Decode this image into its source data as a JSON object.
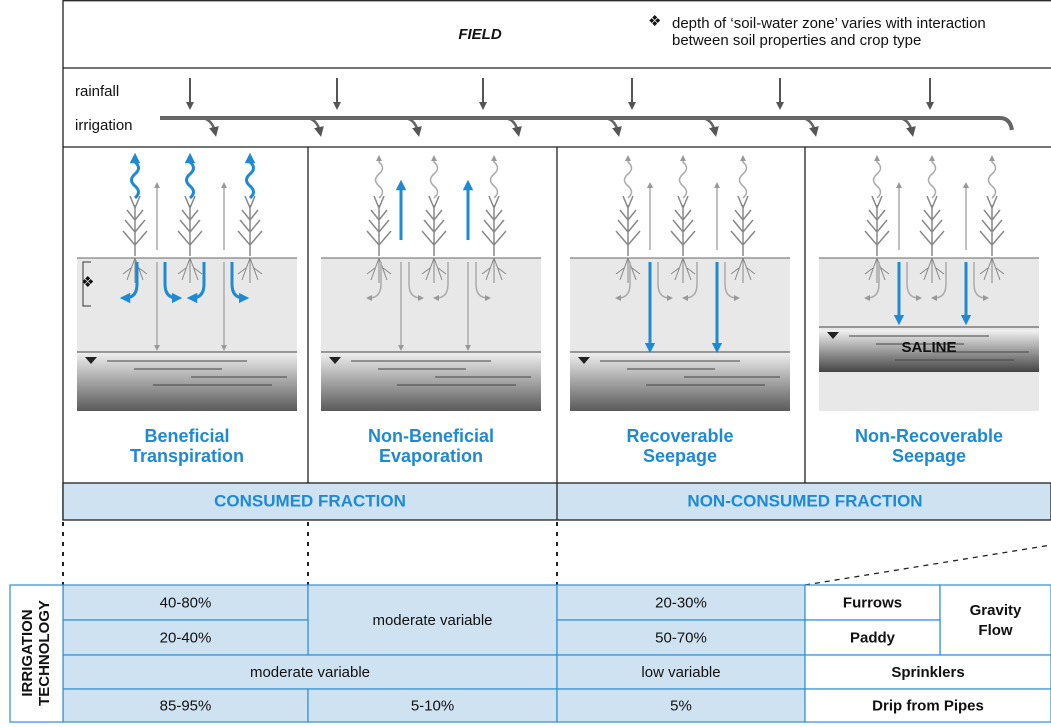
{
  "field": {
    "title": "FIELD",
    "note_symbol": "❖",
    "note": [
      "depth of ‘soil-water zone’ varies with interaction",
      "between soil properties and crop type"
    ],
    "inputs": [
      "rainfall",
      "irrigation"
    ]
  },
  "panels": [
    {
      "label": [
        "Beneficial",
        "Transpiration"
      ],
      "marker": "❖"
    },
    {
      "label": [
        "Non-Beneficial",
        "Evaporation"
      ]
    },
    {
      "label": [
        "Recoverable",
        "Seepage"
      ]
    },
    {
      "label": [
        "Non-Recoverable",
        "Seepage"
      ],
      "zone": "SALINE"
    }
  ],
  "fractions": [
    "CONSUMED FRACTION",
    "NON-CONSUMED FRACTION"
  ],
  "table": {
    "row_header": [
      "IRRIGATION",
      "TECHNOLOGY"
    ],
    "rows": [
      [
        "40-80%",
        "moderate variable",
        "20-30%",
        "Furrows",
        "Gravity Flow"
      ],
      [
        "20-40%",
        "50-70%",
        "Paddy"
      ],
      [
        "moderate variable",
        "low variable",
        "Sprinklers"
      ],
      [
        "85-95%",
        "5-10%",
        "5%",
        "Drip from Pipes"
      ]
    ]
  }
}
